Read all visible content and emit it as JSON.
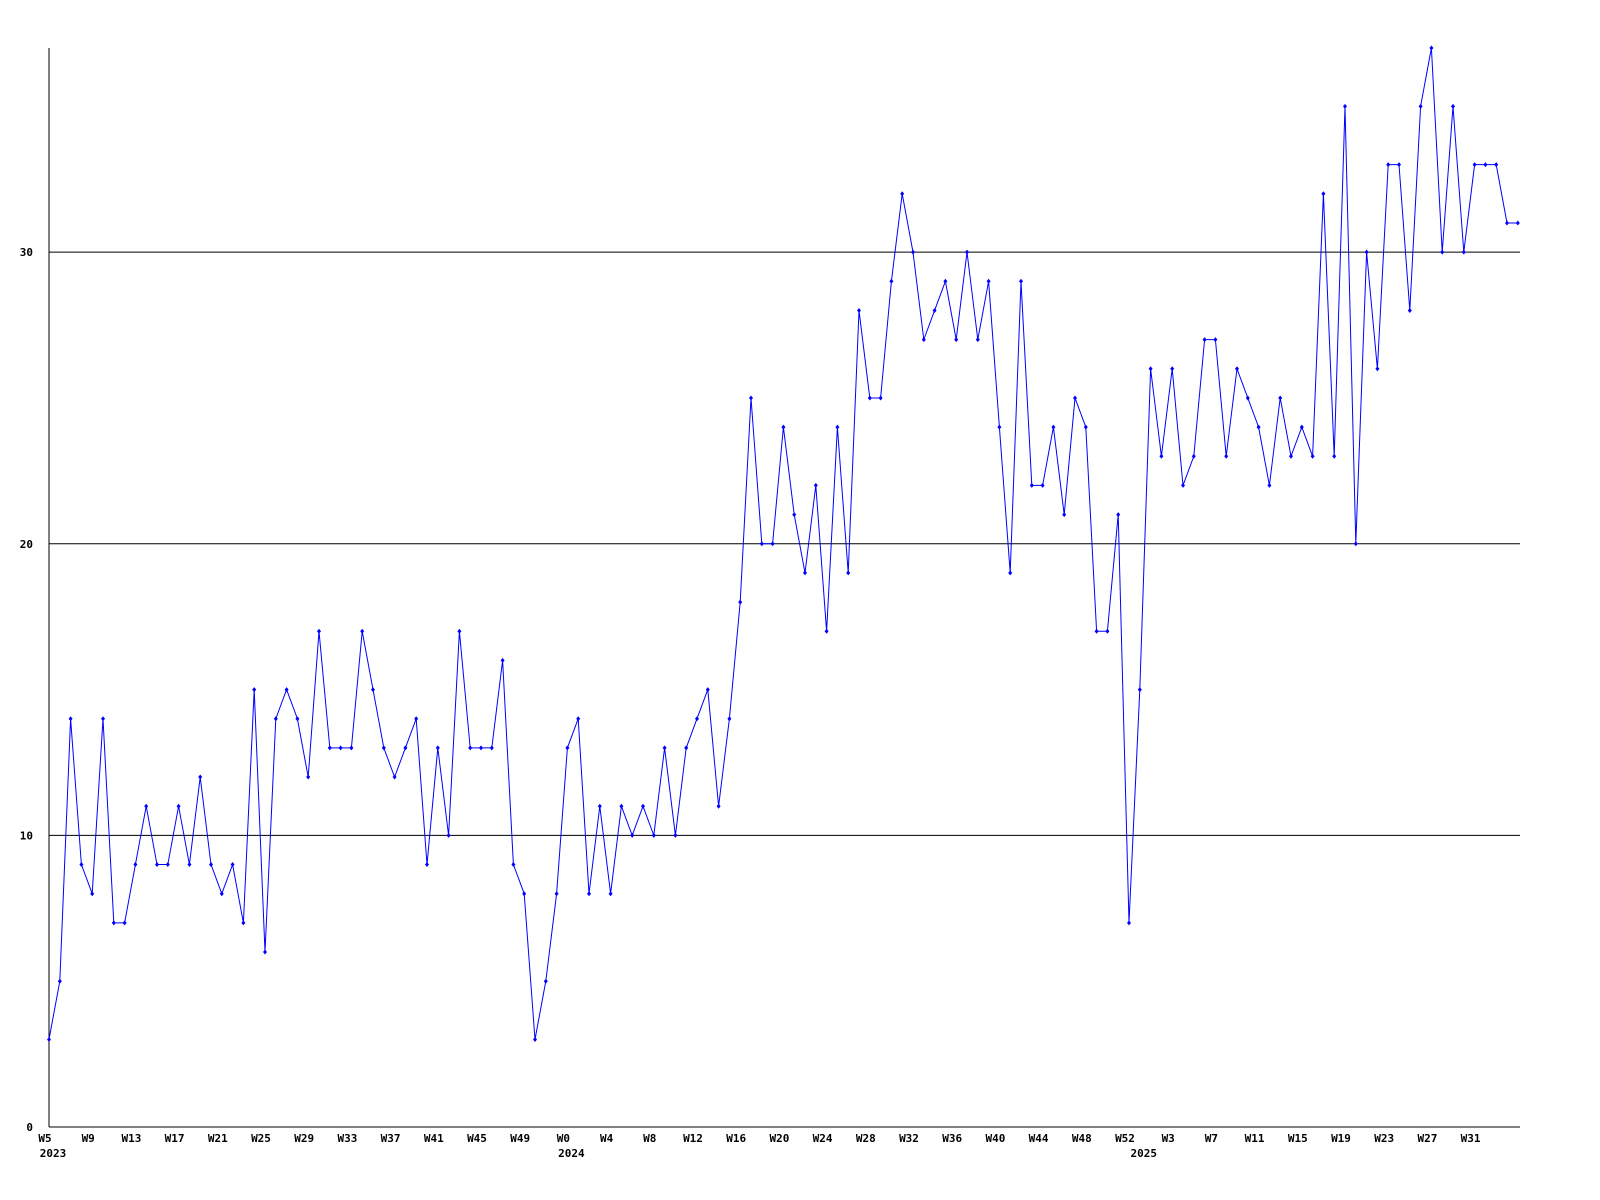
{
  "chart_data": {
    "type": "line",
    "categories": [
      "W5",
      null,
      null,
      null,
      "W9",
      null,
      null,
      null,
      "W13",
      null,
      null,
      null,
      "W17",
      null,
      null,
      null,
      "W21",
      null,
      null,
      null,
      "W25",
      null,
      null,
      null,
      "W29",
      null,
      null,
      null,
      "W33",
      null,
      null,
      null,
      "W37",
      null,
      null,
      null,
      "W41",
      null,
      null,
      null,
      "W45",
      null,
      null,
      null,
      "W49",
      null,
      null,
      null,
      "W0",
      null,
      null,
      null,
      "W4",
      null,
      null,
      null,
      "W8",
      null,
      null,
      null,
      "W12",
      null,
      null,
      null,
      "W16",
      null,
      null,
      null,
      "W20",
      null,
      null,
      null,
      "W24",
      null,
      null,
      null,
      "W28",
      null,
      null,
      null,
      "W32",
      null,
      null,
      null,
      "W36",
      null,
      null,
      null,
      "W40",
      null,
      null,
      null,
      "W44",
      null,
      null,
      null,
      "W48",
      null,
      null,
      null,
      "W52",
      null,
      null,
      null,
      "W3",
      null,
      null,
      null,
      "W7",
      null,
      null,
      null,
      "W11",
      null,
      null,
      null,
      "W15",
      null,
      null,
      null,
      "W19",
      null,
      null,
      null,
      "W23",
      null,
      null,
      null,
      "W27",
      null,
      null,
      null,
      "W31",
      null,
      null,
      null,
      null
    ],
    "category_groups": [
      "2023",
      null,
      null,
      null,
      null,
      null,
      null,
      null,
      null,
      null,
      null,
      null,
      null,
      null,
      null,
      null,
      null,
      null,
      null,
      null,
      null,
      null,
      null,
      null,
      null,
      null,
      null,
      null,
      null,
      null,
      null,
      null,
      null,
      null,
      null,
      null,
      null,
      null,
      null,
      null,
      null,
      null,
      null,
      null,
      null,
      null,
      null,
      null,
      "2024",
      null,
      null,
      null,
      null,
      null,
      null,
      null,
      null,
      null,
      null,
      null,
      null,
      null,
      null,
      null,
      null,
      null,
      null,
      null,
      null,
      null,
      null,
      null,
      null,
      null,
      null,
      null,
      null,
      null,
      null,
      null,
      null,
      null,
      null,
      null,
      null,
      null,
      null,
      null,
      null,
      null,
      null,
      null,
      null,
      null,
      null,
      null,
      null,
      null,
      null,
      null,
      null,
      "2025",
      null,
      null,
      null,
      null,
      null,
      null,
      null,
      null,
      null,
      null,
      null,
      null,
      null,
      null,
      null,
      null,
      null,
      null,
      null,
      null,
      null,
      null,
      null,
      null,
      null,
      null,
      null,
      null,
      null,
      null,
      null,
      null,
      null,
      null,
      null
    ],
    "series": [
      {
        "color": "#0000ff",
        "values": [
          3,
          5,
          14,
          9,
          8,
          14,
          7,
          7,
          9,
          11,
          9,
          9,
          11,
          9,
          12,
          9,
          8,
          9,
          7,
          15,
          6,
          14,
          15,
          14,
          12,
          17,
          13,
          13,
          13,
          17,
          15,
          13,
          12,
          13,
          14,
          9,
          13,
          10,
          17,
          13,
          13,
          13,
          16,
          9,
          8,
          3,
          5,
          8,
          13,
          14,
          8,
          11,
          8,
          11,
          10,
          11,
          10,
          13,
          10,
          13,
          14,
          15,
          11,
          14,
          18,
          25,
          20,
          20,
          24,
          21,
          19,
          22,
          17,
          24,
          19,
          28,
          25,
          25,
          29,
          32,
          30,
          27,
          28,
          29,
          27,
          30,
          27,
          29,
          24,
          19,
          29,
          22,
          22,
          24,
          21,
          25,
          24,
          17,
          17,
          21,
          7,
          15,
          26,
          23,
          26,
          22,
          23,
          27,
          27,
          23,
          26,
          25,
          24,
          22,
          25,
          23,
          24,
          23,
          32,
          23,
          35,
          20,
          30,
          26,
          33,
          33,
          28,
          35,
          37,
          30,
          35,
          30,
          33,
          33,
          33,
          31,
          31
        ]
      }
    ],
    "ylim": [
      0,
      37
    ],
    "yticks": [
      0,
      10,
      20,
      30
    ],
    "grid": true
  }
}
